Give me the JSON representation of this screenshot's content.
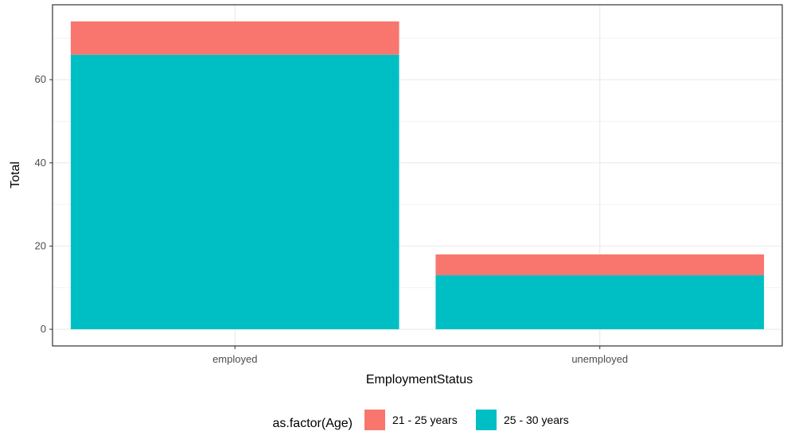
{
  "chart_data": {
    "type": "bar",
    "stacked": true,
    "title": "",
    "xlabel": "EmploymentStatus",
    "ylabel": "Total",
    "categories": [
      "employed",
      "unemployed"
    ],
    "series": [
      {
        "name": "21 - 25 years",
        "values": [
          8,
          5
        ],
        "color": "#f8766d"
      },
      {
        "name": "25 - 30 years",
        "values": [
          66,
          13
        ],
        "color": "#00bfc4"
      }
    ],
    "ylim": [
      -4,
      78
    ],
    "yticks": [
      0,
      20,
      40,
      60
    ],
    "grid": true,
    "legend": {
      "title": "as.factor(Age)",
      "position": "bottom"
    }
  }
}
